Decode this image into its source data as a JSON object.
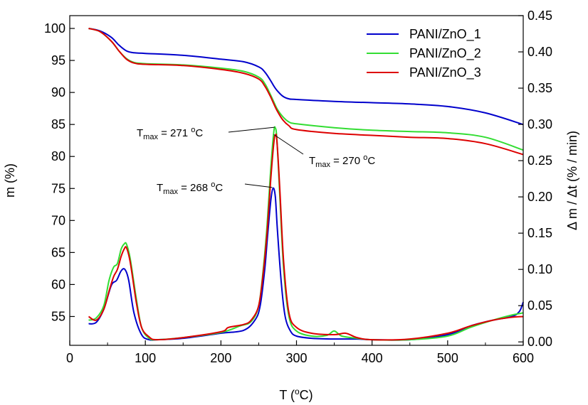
{
  "chart_data": {
    "type": "line",
    "xlabel_main": "T (",
    "xlabel_sup": "o",
    "xlabel_end": "C)",
    "ylabel_left": "m (%)",
    "ylabel_right": "Δ m / Δt (% / min)",
    "xlim": [
      0,
      600
    ],
    "ylim_left": [
      50.5,
      102
    ],
    "ylim_right": [
      -0.0047,
      0.45
    ],
    "x_ticks": [
      0,
      100,
      200,
      300,
      400,
      500,
      600
    ],
    "y_left_ticks": [
      55,
      60,
      65,
      70,
      75,
      80,
      85,
      90,
      95,
      100
    ],
    "y_right_ticks": [
      0.0,
      0.05,
      0.1,
      0.15,
      0.2,
      0.25,
      0.3,
      0.35,
      0.4,
      0.45
    ],
    "grid": false,
    "legend_position": "top-right",
    "series": [
      {
        "name": "PANI/ZnO_1",
        "color": "#0000cc",
        "mass": {
          "x": [
            25,
            40,
            55,
            65,
            75,
            85,
            100,
            150,
            200,
            230,
            250,
            258,
            265,
            270,
            275,
            282,
            290,
            300,
            350,
            400,
            450,
            500,
            550,
            600
          ],
          "y": [
            100,
            99.6,
            98.6,
            97.4,
            96.5,
            96.2,
            96.1,
            95.8,
            95.2,
            94.8,
            94.0,
            93.2,
            92.0,
            91.0,
            90.2,
            89.4,
            89.0,
            88.9,
            88.6,
            88.4,
            88.2,
            87.8,
            86.8,
            85.0
          ]
        },
        "dtg": {
          "x": [
            25,
            35,
            45,
            55,
            62,
            68,
            73,
            78,
            85,
            95,
            105,
            115,
            150,
            200,
            230,
            245,
            252,
            258,
            262,
            266,
            269,
            272,
            275,
            280,
            285,
            292,
            300,
            320,
            350,
            380,
            400,
            450,
            500,
            530,
            560,
            585,
            595,
            600
          ],
          "y": [
            0.025,
            0.027,
            0.045,
            0.078,
            0.085,
            0.098,
            0.1,
            0.085,
            0.04,
            0.01,
            0.003,
            0.003,
            0.005,
            0.012,
            0.016,
            0.03,
            0.05,
            0.1,
            0.15,
            0.195,
            0.212,
            0.2,
            0.15,
            0.08,
            0.035,
            0.015,
            0.008,
            0.005,
            0.004,
            0.004,
            0.003,
            0.003,
            0.01,
            0.022,
            0.03,
            0.035,
            0.042,
            0.055
          ]
        }
      },
      {
        "name": "PANI/ZnO_2",
        "color": "#33dd33",
        "mass": {
          "x": [
            25,
            40,
            55,
            65,
            75,
            85,
            100,
            150,
            200,
            230,
            250,
            258,
            265,
            270,
            275,
            282,
            290,
            300,
            350,
            400,
            450,
            500,
            550,
            600
          ],
          "y": [
            100,
            99.5,
            98.0,
            96.5,
            95.3,
            94.7,
            94.5,
            94.3,
            93.8,
            93.3,
            92.4,
            91.4,
            89.8,
            88.5,
            87.3,
            86.2,
            85.4,
            85.1,
            84.5,
            84.1,
            83.9,
            83.7,
            83.0,
            81.0
          ]
        },
        "dtg": {
          "x": [
            25,
            35,
            45,
            52,
            58,
            63,
            68,
            72,
            75,
            80,
            88,
            95,
            105,
            115,
            150,
            200,
            225,
            240,
            250,
            256,
            261,
            266,
            270,
            272,
            274,
            278,
            283,
            290,
            300,
            320,
            340,
            350,
            360,
            380,
            400,
            450,
            500,
            530,
            560,
            585,
            600
          ],
          "y": [
            0.03,
            0.033,
            0.05,
            0.085,
            0.103,
            0.108,
            0.128,
            0.135,
            0.135,
            0.115,
            0.06,
            0.02,
            0.005,
            0.003,
            0.006,
            0.013,
            0.022,
            0.028,
            0.05,
            0.1,
            0.16,
            0.24,
            0.29,
            0.295,
            0.28,
            0.2,
            0.1,
            0.035,
            0.015,
            0.008,
            0.009,
            0.015,
            0.008,
            0.005,
            0.003,
            0.003,
            0.008,
            0.02,
            0.03,
            0.037,
            0.04
          ]
        }
      },
      {
        "name": "PANI/ZnO_3",
        "color": "#dd0000",
        "mass": {
          "x": [
            25,
            40,
            55,
            65,
            75,
            85,
            100,
            150,
            200,
            230,
            250,
            258,
            265,
            270,
            275,
            282,
            290,
            300,
            350,
            400,
            450,
            500,
            550,
            600
          ],
          "y": [
            100,
            99.5,
            98.0,
            96.5,
            95.2,
            94.6,
            94.4,
            94.2,
            93.6,
            93.0,
            92.1,
            91.0,
            89.5,
            88.2,
            87.0,
            85.7,
            84.8,
            84.2,
            83.6,
            83.3,
            83.0,
            82.8,
            82.0,
            80.3
          ]
        },
        "dtg": {
          "x": [
            25,
            35,
            45,
            52,
            58,
            63,
            68,
            72,
            75,
            80,
            88,
            95,
            105,
            115,
            150,
            200,
            210,
            230,
            240,
            250,
            256,
            261,
            266,
            270,
            272,
            274,
            278,
            283,
            290,
            300,
            320,
            350,
            365,
            380,
            400,
            450,
            500,
            530,
            560,
            585,
            600
          ],
          "y": [
            0.035,
            0.03,
            0.045,
            0.07,
            0.09,
            0.1,
            0.118,
            0.128,
            0.13,
            0.11,
            0.055,
            0.02,
            0.007,
            0.003,
            0.006,
            0.014,
            0.02,
            0.024,
            0.03,
            0.05,
            0.095,
            0.15,
            0.225,
            0.275,
            0.285,
            0.278,
            0.21,
            0.11,
            0.04,
            0.02,
            0.012,
            0.01,
            0.012,
            0.006,
            0.003,
            0.004,
            0.012,
            0.022,
            0.03,
            0.034,
            0.035
          ]
        }
      }
    ],
    "annotations": [
      {
        "prefix": "T",
        "sub": "max",
        "text": " = 271 ",
        "sup": "o",
        "unit": "C",
        "series": "PANI/ZnO_2",
        "point_x": 271,
        "point_dtg": 0.296
      },
      {
        "prefix": "T",
        "sub": "max",
        "text": " = 270 ",
        "sup": "o",
        "unit": "C",
        "series": "PANI/ZnO_3",
        "point_x": 270,
        "point_dtg": 0.286
      },
      {
        "prefix": "T",
        "sub": "max",
        "text": " = 268 ",
        "sup": "o",
        "unit": "C",
        "series": "PANI/ZnO_1",
        "point_x": 268,
        "point_dtg": 0.213
      }
    ]
  }
}
